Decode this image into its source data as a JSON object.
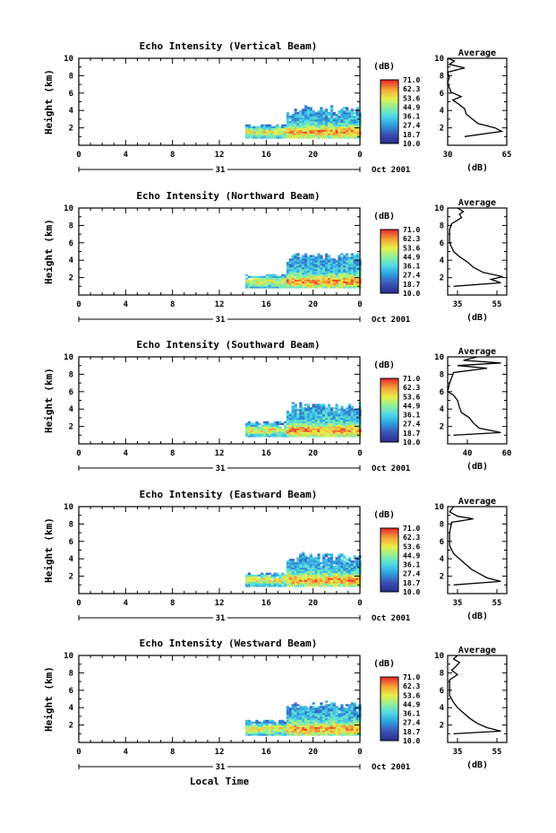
{
  "figure": {
    "xlabel": "Local Time",
    "colorbar_unit": "(dB)",
    "colorbar_ticks": [
      "71.0",
      "62.3",
      "53.6",
      "44.9",
      "36.1",
      "27.4",
      "18.7",
      "10.0"
    ],
    "average_title": "Average",
    "average_xlabel": "(dB)",
    "date_day": "31",
    "date_suffix": "Oct 2001"
  },
  "chart_data": [
    {
      "type": "heatmap",
      "title": "Echo Intensity (Vertical Beam)",
      "xlabel": "",
      "ylabel": "Height (km)",
      "x_ticks": [
        "0",
        "4",
        "8",
        "12",
        "16",
        "20",
        "0"
      ],
      "y_ticks": [
        "2",
        "4",
        "6",
        "8",
        "10"
      ],
      "xlim": [
        0,
        24
      ],
      "ylim": [
        0,
        10
      ],
      "zlim": [
        10.0,
        71.0
      ],
      "colorscale": [
        "#2d2f8f",
        "#3a55b8",
        "#2f9fe0",
        "#4fd8e6",
        "#8ff09a",
        "#e8ee4a",
        "#f6a43a",
        "#e8302a"
      ],
      "echo_start_hour": 14.2,
      "step_hour": 17.7,
      "layer_top_early_km": 2.2,
      "layer_top_late_km": 4.0,
      "average_profile": {
        "x_ticks": [
          "30",
          "65"
        ],
        "xlim": [
          30,
          65
        ],
        "points": [
          [
            40,
            1
          ],
          [
            62,
            1.6
          ],
          [
            58,
            2.0
          ],
          [
            48,
            2.5
          ],
          [
            44,
            3.1
          ],
          [
            41,
            3.6
          ],
          [
            40,
            4.2
          ],
          [
            36,
            4.8
          ],
          [
            33,
            5.2
          ],
          [
            38,
            5.6
          ],
          [
            32,
            6.1
          ],
          [
            31,
            6.6
          ],
          [
            30,
            7.2
          ],
          [
            31,
            7.8
          ],
          [
            30,
            8.4
          ],
          [
            40,
            8.9
          ],
          [
            31,
            9.3
          ],
          [
            34,
            9.7
          ],
          [
            30,
            10
          ]
        ]
      }
    },
    {
      "type": "heatmap",
      "title": "Echo Intensity (Northward Beam)",
      "xlabel": "",
      "ylabel": "Height (km)",
      "x_ticks": [
        "0",
        "4",
        "8",
        "12",
        "16",
        "20",
        "0"
      ],
      "y_ticks": [
        "2",
        "4",
        "6",
        "8",
        "10"
      ],
      "xlim": [
        0,
        24
      ],
      "ylim": [
        0,
        10
      ],
      "zlim": [
        10.0,
        71.0
      ],
      "colorscale": [
        "#2d2f8f",
        "#3a55b8",
        "#2f9fe0",
        "#4fd8e6",
        "#8ff09a",
        "#e8ee4a",
        "#f6a43a",
        "#e8302a"
      ],
      "echo_start_hour": 14.2,
      "step_hour": 17.7,
      "layer_top_early_km": 2.2,
      "layer_top_late_km": 4.4,
      "average_profile": {
        "x_ticks": [
          "35",
          "55"
        ],
        "xlim": [
          30,
          60
        ],
        "points": [
          [
            33,
            1
          ],
          [
            57,
            1.4
          ],
          [
            52,
            1.8
          ],
          [
            58,
            2.1
          ],
          [
            48,
            2.6
          ],
          [
            43,
            3.2
          ],
          [
            40,
            3.8
          ],
          [
            36,
            4.4
          ],
          [
            33,
            5.0
          ],
          [
            31,
            6.0
          ],
          [
            31,
            7.5
          ],
          [
            32,
            8.2
          ],
          [
            35,
            8.6
          ],
          [
            37,
            8.9
          ],
          [
            36,
            9.3
          ],
          [
            38,
            9.6
          ],
          [
            35,
            10
          ]
        ]
      }
    },
    {
      "type": "heatmap",
      "title": "Echo Intensity (Southward Beam)",
      "xlabel": "",
      "ylabel": "Height (km)",
      "x_ticks": [
        "40",
        "60"
      ],
      "y_ticks": [
        "2",
        "4",
        "6",
        "8",
        "10"
      ],
      "xlim": [
        0,
        24
      ],
      "ylim": [
        0,
        10
      ],
      "zlim": [
        10.0,
        71.0
      ],
      "colorscale": [
        "#2d2f8f",
        "#3a55b8",
        "#2f9fe0",
        "#4fd8e6",
        "#8ff09a",
        "#e8ee4a",
        "#f6a43a",
        "#e8302a"
      ],
      "echo_start_hour": 14.2,
      "step_hour": 17.7,
      "layer_top_early_km": 2.4,
      "layer_top_late_km": 4.3,
      "main_x_ticks": [
        "0",
        "4",
        "8",
        "12",
        "16",
        "20",
        "0"
      ],
      "average_profile": {
        "x_ticks": [
          "40",
          "60"
        ],
        "xlim": [
          30,
          60
        ],
        "points": [
          [
            33,
            1
          ],
          [
            57,
            1.3
          ],
          [
            46,
            1.8
          ],
          [
            43,
            2.4
          ],
          [
            41,
            3.0
          ],
          [
            37,
            3.6
          ],
          [
            36,
            4.2
          ],
          [
            35,
            5.0
          ],
          [
            33,
            5.6
          ],
          [
            30,
            6.0
          ],
          [
            31,
            7.0
          ],
          [
            33,
            8.2
          ],
          [
            50,
            8.7
          ],
          [
            35,
            9.0
          ],
          [
            57,
            9.3
          ],
          [
            38,
            9.6
          ],
          [
            45,
            10
          ]
        ]
      }
    },
    {
      "type": "heatmap",
      "title": "Echo Intensity (Eastward Beam)",
      "xlabel": "",
      "ylabel": "Height (km)",
      "x_ticks": [
        "0",
        "4",
        "8",
        "12",
        "16",
        "20",
        "0"
      ],
      "y_ticks": [
        "2",
        "4",
        "6",
        "8",
        "10"
      ],
      "xlim": [
        0,
        24
      ],
      "ylim": [
        0,
        10
      ],
      "zlim": [
        10.0,
        71.0
      ],
      "colorscale": [
        "#2d2f8f",
        "#3a55b8",
        "#2f9fe0",
        "#4fd8e6",
        "#8ff09a",
        "#e8ee4a",
        "#f6a43a",
        "#e8302a"
      ],
      "echo_start_hour": 14.2,
      "step_hour": 17.7,
      "layer_top_early_km": 2.2,
      "layer_top_late_km": 4.2,
      "average_profile": {
        "x_ticks": [
          "35",
          "55"
        ],
        "xlim": [
          30,
          60
        ],
        "points": [
          [
            33,
            1
          ],
          [
            57,
            1.4
          ],
          [
            50,
            1.8
          ],
          [
            46,
            2.3
          ],
          [
            42,
            2.8
          ],
          [
            39,
            3.4
          ],
          [
            36,
            4.0
          ],
          [
            33,
            4.6
          ],
          [
            31,
            5.5
          ],
          [
            31,
            7.0
          ],
          [
            32,
            8.2
          ],
          [
            43,
            8.6
          ],
          [
            35,
            8.9
          ],
          [
            31,
            9.4
          ],
          [
            33,
            10
          ]
        ]
      }
    },
    {
      "type": "heatmap",
      "title": "Echo Intensity (Westward Beam)",
      "xlabel": "Local Time",
      "ylabel": "Height (km)",
      "x_ticks": [
        "0",
        "4",
        "8",
        "12",
        "16",
        "20",
        "0"
      ],
      "y_ticks": [
        "2",
        "4",
        "6",
        "8",
        "10"
      ],
      "xlim": [
        0,
        24
      ],
      "ylim": [
        0,
        10
      ],
      "zlim": [
        10.0,
        71.0
      ],
      "colorscale": [
        "#2d2f8f",
        "#3a55b8",
        "#2f9fe0",
        "#4fd8e6",
        "#8ff09a",
        "#e8ee4a",
        "#f6a43a",
        "#e8302a"
      ],
      "echo_start_hour": 14.2,
      "step_hour": 17.7,
      "layer_top_early_km": 2.4,
      "layer_top_late_km": 4.2,
      "average_profile": {
        "x_ticks": [
          "35",
          "55"
        ],
        "xlim": [
          30,
          60
        ],
        "points": [
          [
            33,
            1
          ],
          [
            57,
            1.3
          ],
          [
            50,
            1.7
          ],
          [
            45,
            2.2
          ],
          [
            41,
            2.8
          ],
          [
            38,
            3.4
          ],
          [
            35,
            4.0
          ],
          [
            33,
            4.6
          ],
          [
            31,
            5.4
          ],
          [
            31,
            7.2
          ],
          [
            35,
            7.8
          ],
          [
            32,
            8.3
          ],
          [
            34,
            8.7
          ],
          [
            36,
            9.2
          ],
          [
            33,
            9.6
          ],
          [
            35,
            10
          ]
        ]
      }
    }
  ]
}
